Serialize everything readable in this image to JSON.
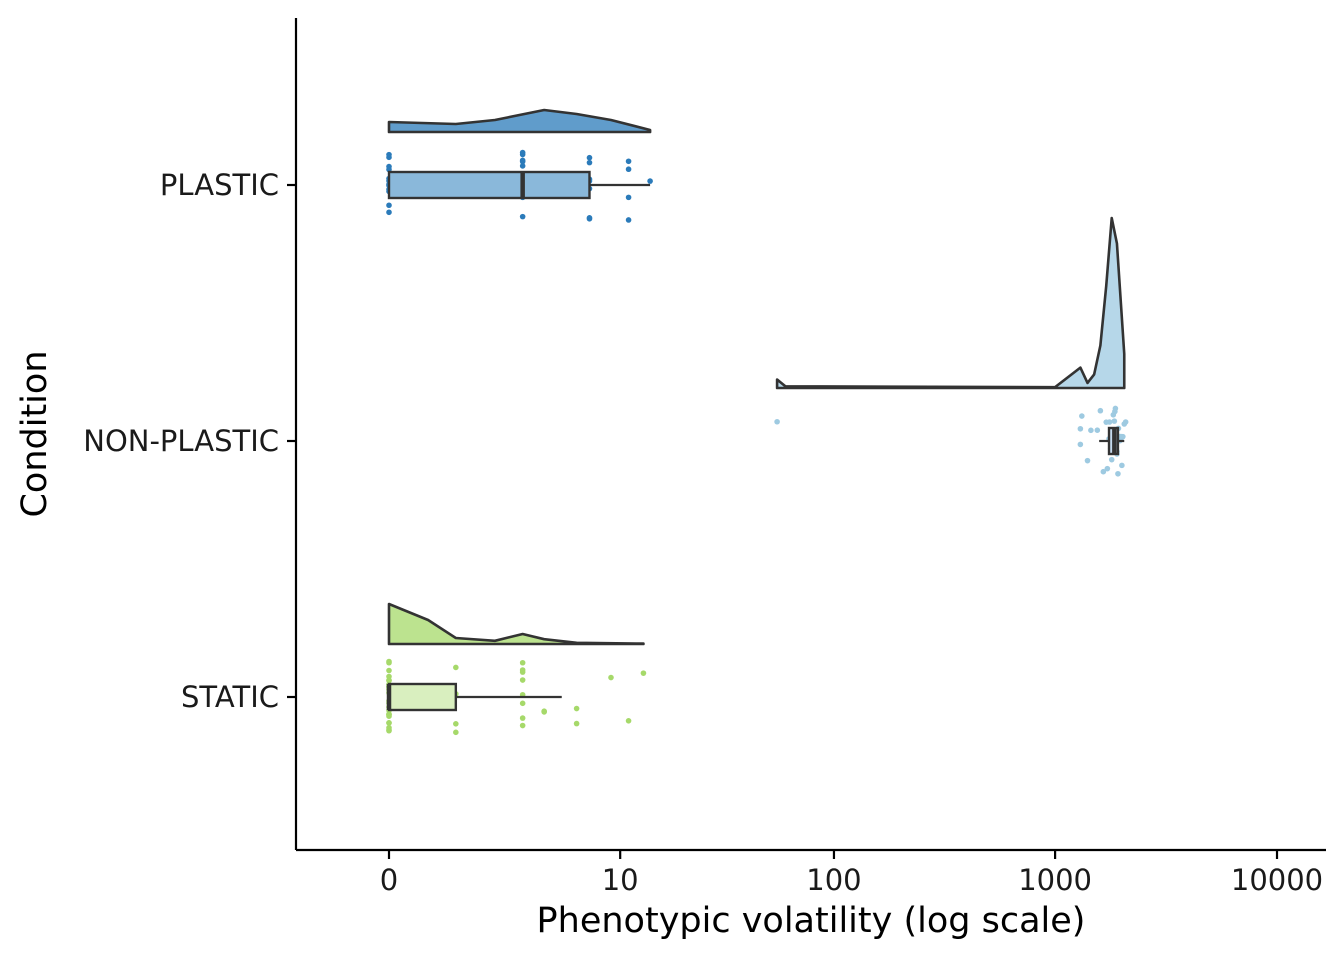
{
  "chart_data": {
    "type": "raincloud",
    "title": "",
    "xlabel": "Phenotypic volatility (log scale)",
    "ylabel": "Condition",
    "x_scale": "log1p",
    "xlim": [
      -0.4,
      14000
    ],
    "x_ticks": [
      0,
      10,
      100,
      1000,
      10000
    ],
    "x_tick_labels": [
      "0",
      "10",
      "100",
      "1000",
      "10000"
    ],
    "categories": [
      "PLASTIC",
      "NON-PLASTIC",
      "STATIC"
    ],
    "grid": false,
    "legend": "none",
    "series": [
      {
        "condition": "PLASTIC",
        "color": "#2b7bba",
        "box_fill": "#8ab8da",
        "box": {
          "q1": 0,
          "median": 3,
          "q3": 7,
          "whisker_low": 0,
          "whisker_high": 14
        },
        "points": [
          0,
          0,
          0,
          0,
          0,
          0,
          0,
          0,
          0,
          0,
          0,
          0,
          3,
          3,
          3,
          3,
          3,
          3,
          3,
          3,
          3,
          3,
          3,
          7,
          7,
          7,
          7,
          7,
          7,
          7,
          11,
          11,
          11,
          11,
          14
        ],
        "density": [
          [
            0,
            0.25
          ],
          [
            1,
            0.2
          ],
          [
            2,
            0.3
          ],
          [
            4,
            0.55
          ],
          [
            6,
            0.45
          ],
          [
            9,
            0.3
          ],
          [
            14,
            0.05
          ]
        ]
      },
      {
        "condition": "NON-PLASTIC",
        "color": "#9ecae1",
        "box_fill": "#c6dbef",
        "box": {
          "q1": 1750,
          "median": 1850,
          "q3": 1920,
          "whisker_low": 1580,
          "whisker_high": 2050
        },
        "points": [
          55,
          1300,
          1300,
          1320,
          1400,
          1450,
          1550,
          1600,
          1650,
          1700,
          1720,
          1750,
          1760,
          1780,
          1800,
          1800,
          1820,
          1830,
          1850,
          1850,
          1860,
          1870,
          1880,
          1900,
          1900,
          1920,
          1930,
          1950,
          1960,
          1980,
          2000,
          2000,
          2020,
          2050,
          2080
        ],
        "density": [
          [
            55,
            0.05
          ],
          [
            60,
            0.01
          ],
          [
            1000,
            0.005
          ],
          [
            1300,
            0.12
          ],
          [
            1400,
            0.03
          ],
          [
            1500,
            0.08
          ],
          [
            1600,
            0.25
          ],
          [
            1700,
            0.6
          ],
          [
            1800,
            1
          ],
          [
            1900,
            0.85
          ],
          [
            2050,
            0.2
          ]
        ]
      },
      {
        "condition": "STATIC",
        "color": "#a6d96a",
        "box_fill": "#d9efbf",
        "box": {
          "q1": 0,
          "median": 0,
          "q3": 1,
          "whisker_low": 0,
          "whisker_high": 5
        },
        "points": [
          0,
          0,
          0,
          0,
          0,
          0,
          0,
          0,
          0,
          0,
          0,
          0,
          0,
          0,
          0,
          0,
          0,
          0,
          0,
          0,
          0,
          0,
          0,
          0,
          1,
          1,
          1,
          1,
          3,
          3,
          3,
          3,
          3,
          3,
          3,
          3,
          4,
          4,
          6,
          6,
          9,
          11,
          13
        ],
        "density": [
          [
            0,
            1
          ],
          [
            0.5,
            0.6
          ],
          [
            1,
            0.15
          ],
          [
            2,
            0.08
          ],
          [
            3,
            0.25
          ],
          [
            4,
            0.12
          ],
          [
            6,
            0.03
          ],
          [
            13,
            0.01
          ]
        ]
      }
    ]
  }
}
